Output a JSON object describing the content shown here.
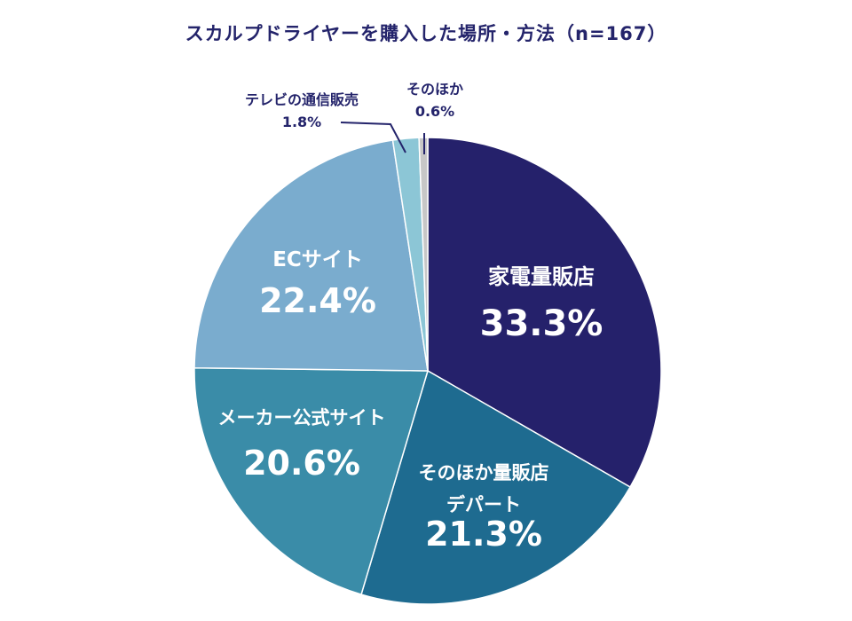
{
  "chart_data": {
    "type": "pie",
    "title": "スカルプドライヤーを購入した場所・方法（n=167）",
    "slices": [
      {
        "label": "家電量販店",
        "value": 33.3,
        "value_label": "33.3%",
        "color": "#25216b",
        "label_lines": [
          "家電量販店"
        ]
      },
      {
        "label": "そのほか量販店 デパート",
        "value": 21.3,
        "value_label": "21.3%",
        "color": "#1e6b90",
        "label_lines": [
          "そのほか量販店",
          "デパート"
        ]
      },
      {
        "label": "メーカー公式サイト",
        "value": 20.6,
        "value_label": "20.6%",
        "color": "#3a8ca8",
        "label_lines": [
          "メーカー公式サイト"
        ]
      },
      {
        "label": "ECサイト",
        "value": 22.4,
        "value_label": "22.4%",
        "color": "#7aacce",
        "label_lines": [
          "ECサイト"
        ]
      },
      {
        "label": "テレビの通信販売",
        "value": 1.8,
        "value_label": "1.8%",
        "color": "#8cc6d6",
        "label_lines": [
          "テレビの通信販売"
        ]
      },
      {
        "label": "そのほか",
        "value": 0.6,
        "value_label": "0.6%",
        "color": "#c7c7c7",
        "label_lines": [
          "そのほか"
        ]
      }
    ]
  }
}
